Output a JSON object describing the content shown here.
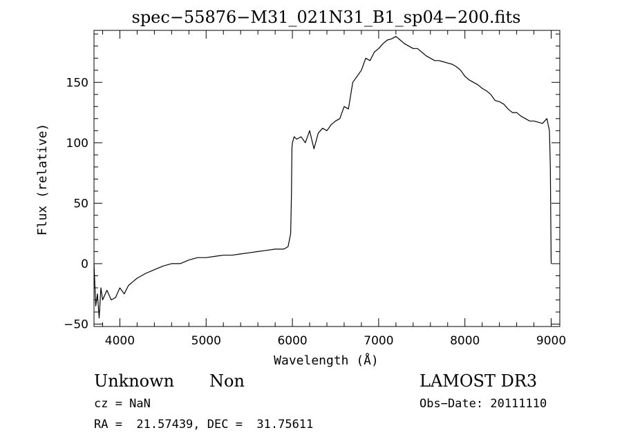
{
  "chart_data": {
    "type": "line",
    "title": "spec−55876−M31_021N31_B1_sp04−200.fits",
    "xlabel": "Wavelength (Å)",
    "ylabel": "Flux (relative)",
    "xlim": [
      3700,
      9100
    ],
    "ylim": [
      -52,
      193
    ],
    "x_ticks": [
      4000,
      5000,
      6000,
      7000,
      8000,
      9000
    ],
    "y_ticks": [
      -50,
      0,
      50,
      100,
      150
    ],
    "x_tick_labels": [
      "4000",
      "5000",
      "6000",
      "7000",
      "8000",
      "9000"
    ],
    "y_tick_labels": [
      "−50",
      "0",
      "50",
      "100",
      "150"
    ],
    "grid": false,
    "legend": "none",
    "line_color": "#000000",
    "series": [
      {
        "x": [
          3700,
          3720,
          3740,
          3760,
          3780,
          3800,
          3850,
          3900,
          3950,
          4000,
          4050,
          4100,
          4150,
          4200,
          4300,
          4400,
          4500,
          4600,
          4700,
          4800,
          4900,
          5000,
          5100,
          5200,
          5300,
          5400,
          5500,
          5600,
          5700,
          5800,
          5850,
          5900,
          5950,
          5980,
          5990,
          5995,
          6000,
          6020,
          6050,
          6100,
          6150,
          6200,
          6250,
          6300,
          6350,
          6400,
          6450,
          6500,
          6550,
          6600,
          6650,
          6700,
          6750,
          6800,
          6850,
          6900,
          6950,
          7000,
          7050,
          7100,
          7150,
          7200,
          7250,
          7300,
          7350,
          7400,
          7450,
          7500,
          7550,
          7600,
          7650,
          7700,
          7750,
          7800,
          7850,
          7900,
          7950,
          8000,
          8050,
          8100,
          8150,
          8200,
          8250,
          8300,
          8350,
          8400,
          8450,
          8500,
          8550,
          8600,
          8650,
          8700,
          8750,
          8800,
          8850,
          8900,
          8950,
          8980,
          8990,
          9000
        ],
        "y": [
          0,
          -35,
          -25,
          -45,
          -20,
          -30,
          -22,
          -30,
          -28,
          -20,
          -25,
          -18,
          -15,
          -12,
          -8,
          -5,
          -2,
          0,
          0,
          3,
          5,
          5,
          6,
          7,
          7,
          8,
          9,
          10,
          11,
          12,
          12,
          12,
          14,
          25,
          60,
          95,
          100,
          105,
          103,
          105,
          100,
          110,
          95,
          108,
          112,
          110,
          115,
          118,
          120,
          130,
          128,
          150,
          155,
          160,
          170,
          168,
          175,
          178,
          182,
          185,
          186,
          188,
          185,
          182,
          180,
          178,
          178,
          175,
          172,
          170,
          168,
          168,
          167,
          166,
          165,
          163,
          160,
          155,
          152,
          150,
          148,
          145,
          143,
          140,
          135,
          134,
          132,
          128,
          125,
          125,
          122,
          120,
          118,
          118,
          117,
          116,
          120,
          110,
          80,
          0
        ]
      }
    ]
  },
  "annotations": {
    "object_type": "Unknown",
    "object_class": "Non",
    "survey": "LAMOST DR3",
    "cz": "cz = NaN",
    "obs_date": "Obs−Date: 20111110",
    "coords": "RA =  21.57439, DEC =  31.75611"
  }
}
